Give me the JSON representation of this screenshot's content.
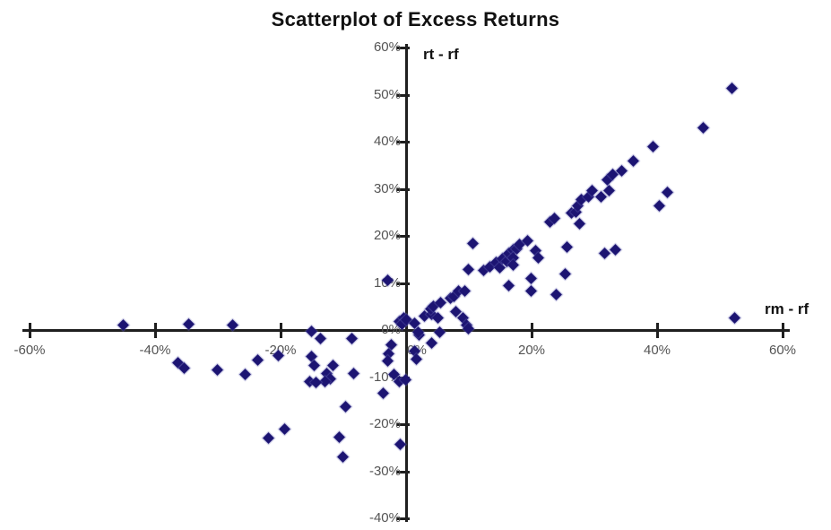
{
  "chart_data": {
    "type": "scatter",
    "title": "Scatterplot of Excess Returns",
    "x_axis_label": "rm - rf",
    "y_axis_label": "rt - rf",
    "xlabel": "rm - rf",
    "ylabel": "rt - rf",
    "xlim": [
      -60,
      60
    ],
    "ylim": [
      -40,
      60
    ],
    "grid": false,
    "legend": false,
    "background_color": "#ffffff",
    "axis_color": "#1f1f1f",
    "tick_label_color": "#545454",
    "title_color": "#111111",
    "marker": {
      "shape": "diamond",
      "color": "#1c1472"
    },
    "x_ticks": [
      {
        "v": -60,
        "label": "-60%"
      },
      {
        "v": -40,
        "label": "-40%"
      },
      {
        "v": -20,
        "label": "-20%"
      },
      {
        "v": 0,
        "label": "0%"
      },
      {
        "v": 20,
        "label": "20%"
      },
      {
        "v": 40,
        "label": "40%"
      },
      {
        "v": 60,
        "label": "60%"
      }
    ],
    "y_ticks": [
      {
        "v": -40,
        "label": "-40%"
      },
      {
        "v": -30,
        "label": "-30%"
      },
      {
        "v": -20,
        "label": "-20%"
      },
      {
        "v": -10,
        "label": "-10%"
      },
      {
        "v": 0,
        "label": "0%"
      },
      {
        "v": 10,
        "label": "10%"
      },
      {
        "v": 20,
        "label": "20%"
      },
      {
        "v": 30,
        "label": "30%"
      },
      {
        "v": 40,
        "label": "40%"
      },
      {
        "v": 50,
        "label": "50%"
      },
      {
        "v": 60,
        "label": "60%"
      }
    ],
    "points": [
      [
        -45.1,
        1.1
      ],
      [
        -34.6,
        1.3
      ],
      [
        -27.6,
        1.0
      ],
      [
        -36.4,
        -7.0
      ],
      [
        -35.4,
        -8.0
      ],
      [
        -30.1,
        -8.4
      ],
      [
        -25.7,
        -9.5
      ],
      [
        -23.7,
        -6.3
      ],
      [
        -20.3,
        -5.5
      ],
      [
        -21.9,
        -22.9
      ],
      [
        -19.4,
        -21.0
      ],
      [
        -15.1,
        -0.2
      ],
      [
        -13.6,
        -1.9
      ],
      [
        -15.1,
        -5.7
      ],
      [
        -14.7,
        -7.6
      ],
      [
        -11.6,
        -7.6
      ],
      [
        -12.6,
        -9.3
      ],
      [
        -12.1,
        -10.3
      ],
      [
        -13.0,
        -10.9
      ],
      [
        -15.4,
        -10.9
      ],
      [
        -14.3,
        -11.2
      ],
      [
        -10.7,
        -22.7
      ],
      [
        -10.1,
        -27.0
      ],
      [
        -9.7,
        -16.2
      ],
      [
        -8.6,
        -1.9
      ],
      [
        -8.4,
        -9.3
      ],
      [
        -3.0,
        10.5
      ],
      [
        -2.3,
        -3.2
      ],
      [
        -2.8,
        -5.0
      ],
      [
        -3.0,
        -6.6
      ],
      [
        -1.9,
        -9.5
      ],
      [
        -1.1,
        -10.9
      ],
      [
        -0.1,
        -10.5
      ],
      [
        -3.6,
        -13.5
      ],
      [
        -0.9,
        -24.2
      ],
      [
        -1.1,
        1.9
      ],
      [
        -0.4,
        2.5
      ],
      [
        -0.7,
        1.3
      ],
      [
        0.1,
        2.1
      ],
      [
        1.4,
        1.5
      ],
      [
        2.0,
        -1.0
      ],
      [
        1.9,
        -0.4
      ],
      [
        1.4,
        -4.4
      ],
      [
        1.7,
        -6.1
      ],
      [
        4.1,
        -2.7
      ],
      [
        5.3,
        -0.4
      ],
      [
        2.9,
        3.0
      ],
      [
        4.0,
        3.4
      ],
      [
        5.0,
        2.5
      ],
      [
        3.9,
        4.4
      ],
      [
        4.3,
        5.0
      ],
      [
        5.5,
        5.8
      ],
      [
        7.0,
        6.7
      ],
      [
        7.7,
        7.2
      ],
      [
        7.9,
        4.0
      ],
      [
        8.4,
        8.2
      ],
      [
        9.3,
        8.2
      ],
      [
        9.0,
        2.5
      ],
      [
        9.6,
        1.1
      ],
      [
        9.9,
        0.2
      ],
      [
        9.9,
        12.8
      ],
      [
        10.7,
        18.3
      ],
      [
        12.4,
        12.6
      ],
      [
        13.4,
        13.5
      ],
      [
        14.3,
        14.4
      ],
      [
        14.9,
        13.3
      ],
      [
        15.3,
        15.2
      ],
      [
        16.0,
        14.5
      ],
      [
        16.3,
        16.2
      ],
      [
        17.0,
        17.1
      ],
      [
        17.7,
        17.3
      ],
      [
        17.1,
        15.4
      ],
      [
        17.1,
        13.9
      ],
      [
        16.4,
        9.5
      ],
      [
        18.1,
        18.1
      ],
      [
        19.3,
        19.0
      ],
      [
        19.9,
        11.0
      ],
      [
        19.9,
        8.2
      ],
      [
        20.6,
        16.8
      ],
      [
        21.0,
        15.4
      ],
      [
        22.9,
        22.9
      ],
      [
        23.6,
        23.8
      ],
      [
        23.9,
        7.6
      ],
      [
        25.3,
        12.0
      ],
      [
        25.6,
        17.7
      ],
      [
        26.4,
        24.8
      ],
      [
        27.0,
        25.0
      ],
      [
        27.3,
        26.4
      ],
      [
        27.9,
        27.8
      ],
      [
        27.7,
        22.5
      ],
      [
        29.1,
        28.2
      ],
      [
        29.6,
        29.7
      ],
      [
        31.0,
        28.2
      ],
      [
        32.1,
        32.0
      ],
      [
        32.4,
        29.7
      ],
      [
        32.9,
        33.0
      ],
      [
        31.7,
        16.2
      ],
      [
        33.4,
        17.1
      ],
      [
        34.3,
        33.9
      ],
      [
        36.2,
        35.9
      ],
      [
        39.3,
        39.0
      ],
      [
        40.4,
        26.3
      ],
      [
        41.7,
        29.3
      ],
      [
        47.3,
        43.0
      ],
      [
        51.9,
        51.4
      ],
      [
        52.4,
        2.5
      ]
    ]
  }
}
